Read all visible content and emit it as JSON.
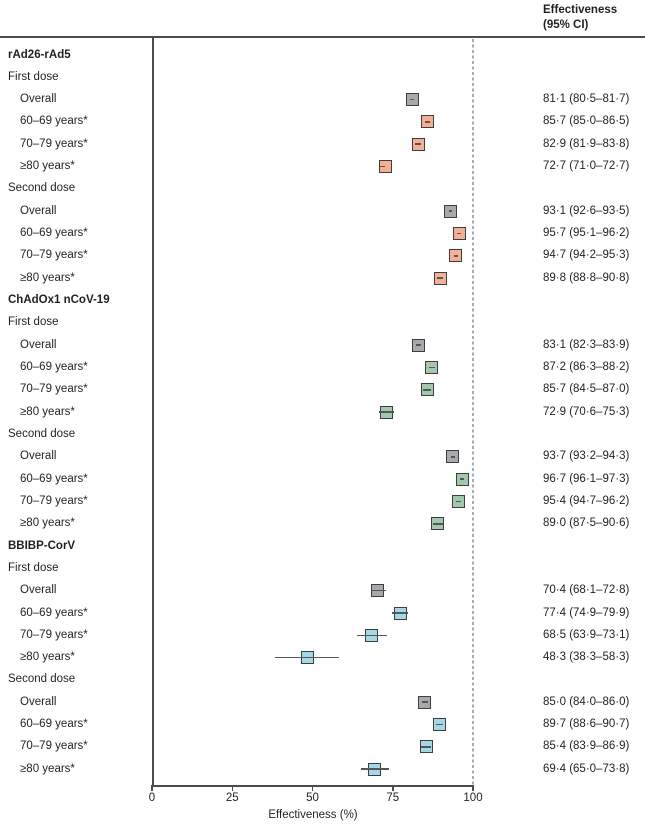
{
  "header": {
    "line1": "Effectiveness",
    "line2": "(95% CI)"
  },
  "colors": {
    "gray": "#a7a9ac",
    "salmon": "#f5b093",
    "green": "#a2c9ad",
    "blue": "#a4d8e6",
    "box_border": "#3e3e40",
    "ci_line": "#55565a",
    "axis": "#4c4c4e",
    "reference_dash": "#9db0b6"
  },
  "chart_data": {
    "type": "forest",
    "title": "",
    "xlabel": "Effectiveness (%)",
    "xlim": [
      0,
      100
    ],
    "xticks": [
      0,
      25,
      50,
      75,
      100
    ],
    "reference_line": 100,
    "value_column_header": "Effectiveness (95% CI)",
    "rows": [
      {
        "kind": "section",
        "label": "rAd26-rAd5"
      },
      {
        "kind": "dose",
        "label": "First dose"
      },
      {
        "kind": "item",
        "label": "Overall",
        "est": 81.1,
        "lo": 80.5,
        "hi": 81.7,
        "color": "gray",
        "text": "81·1 (80·5–81·7)"
      },
      {
        "kind": "item",
        "label": "60–69 years*",
        "est": 85.7,
        "lo": 85.0,
        "hi": 86.5,
        "color": "salmon",
        "text": "85·7 (85·0–86·5)"
      },
      {
        "kind": "item",
        "label": "70–79 years*",
        "est": 82.9,
        "lo": 81.9,
        "hi": 83.8,
        "color": "salmon",
        "text": "82·9 (81·9–83·8)"
      },
      {
        "kind": "item",
        "label": "≥80 years*",
        "est": 72.7,
        "lo": 71.0,
        "hi": 72.7,
        "color": "salmon",
        "text": "72·7 (71·0–72·7)"
      },
      {
        "kind": "dose",
        "label": "Second dose"
      },
      {
        "kind": "item",
        "label": "Overall",
        "est": 93.1,
        "lo": 92.6,
        "hi": 93.5,
        "color": "gray",
        "text": "93·1 (92·6–93·5)"
      },
      {
        "kind": "item",
        "label": "60–69 years*",
        "est": 95.7,
        "lo": 95.1,
        "hi": 96.2,
        "color": "salmon",
        "text": "95·7 (95·1–96·2)"
      },
      {
        "kind": "item",
        "label": "70–79 years*",
        "est": 94.7,
        "lo": 94.2,
        "hi": 95.3,
        "color": "salmon",
        "text": "94·7 (94·2–95·3)"
      },
      {
        "kind": "item",
        "label": "≥80 years*",
        "est": 89.8,
        "lo": 88.8,
        "hi": 90.8,
        "color": "salmon",
        "text": "89·8 (88·8–90·8)"
      },
      {
        "kind": "section",
        "label": "ChAdOx1 nCoV-19"
      },
      {
        "kind": "dose",
        "label": "First dose"
      },
      {
        "kind": "item",
        "label": "Overall",
        "est": 83.1,
        "lo": 82.3,
        "hi": 83.9,
        "color": "gray",
        "text": "83·1 (82·3–83·9)"
      },
      {
        "kind": "item",
        "label": "60–69 years*",
        "est": 87.2,
        "lo": 86.3,
        "hi": 88.2,
        "color": "green",
        "text": "87·2 (86·3–88·2)"
      },
      {
        "kind": "item",
        "label": "70–79 years*",
        "est": 85.7,
        "lo": 84.5,
        "hi": 87.0,
        "color": "green",
        "text": "85·7 (84·5–87·0)"
      },
      {
        "kind": "item",
        "label": "≥80 years*",
        "est": 72.9,
        "lo": 70.6,
        "hi": 75.3,
        "color": "green",
        "text": "72·9 (70·6–75·3)"
      },
      {
        "kind": "dose",
        "label": "Second dose"
      },
      {
        "kind": "item",
        "label": "Overall",
        "est": 93.7,
        "lo": 93.2,
        "hi": 94.3,
        "color": "gray",
        "text": "93·7 (93·2–94·3)"
      },
      {
        "kind": "item",
        "label": "60–69 years*",
        "est": 96.7,
        "lo": 96.1,
        "hi": 97.3,
        "color": "green",
        "text": "96·7 (96·1–97·3)"
      },
      {
        "kind": "item",
        "label": "70–79 years*",
        "est": 95.4,
        "lo": 94.7,
        "hi": 96.2,
        "color": "green",
        "text": "95·4 (94·7–96·2)"
      },
      {
        "kind": "item",
        "label": "≥80 years*",
        "est": 89.0,
        "lo": 87.5,
        "hi": 90.6,
        "color": "green",
        "text": "89·0 (87·5–90·6)"
      },
      {
        "kind": "section",
        "label": "BBIBP-CorV"
      },
      {
        "kind": "dose",
        "label": "First dose"
      },
      {
        "kind": "item",
        "label": "Overall",
        "est": 70.4,
        "lo": 68.1,
        "hi": 72.8,
        "color": "gray",
        "text": "70·4 (68·1–72·8)"
      },
      {
        "kind": "item",
        "label": "60–69 years*",
        "est": 77.4,
        "lo": 74.9,
        "hi": 79.9,
        "color": "blue",
        "text": "77·4 (74·9–79·9)"
      },
      {
        "kind": "item",
        "label": "70–79 years*",
        "est": 68.5,
        "lo": 63.9,
        "hi": 73.1,
        "color": "blue",
        "text": "68·5 (63·9–73·1)"
      },
      {
        "kind": "item",
        "label": "≥80 years*",
        "est": 48.3,
        "lo": 38.3,
        "hi": 58.3,
        "color": "blue",
        "text": "48·3 (38·3–58·3)"
      },
      {
        "kind": "dose",
        "label": "Second dose"
      },
      {
        "kind": "item",
        "label": "Overall",
        "est": 85.0,
        "lo": 84.0,
        "hi": 86.0,
        "color": "gray",
        "text": "85·0 (84·0–86·0)"
      },
      {
        "kind": "item",
        "label": "60–69 years*",
        "est": 89.7,
        "lo": 88.6,
        "hi": 90.7,
        "color": "blue",
        "text": "89·7 (88·6–90·7)"
      },
      {
        "kind": "item",
        "label": "70–79 years*",
        "est": 85.4,
        "lo": 83.9,
        "hi": 86.9,
        "color": "blue",
        "text": "85·4 (83·9–86·9)"
      },
      {
        "kind": "item",
        "label": "≥80 years*",
        "est": 69.4,
        "lo": 65.0,
        "hi": 73.8,
        "color": "blue",
        "text": "69·4 (65·0–73·8)"
      }
    ]
  }
}
